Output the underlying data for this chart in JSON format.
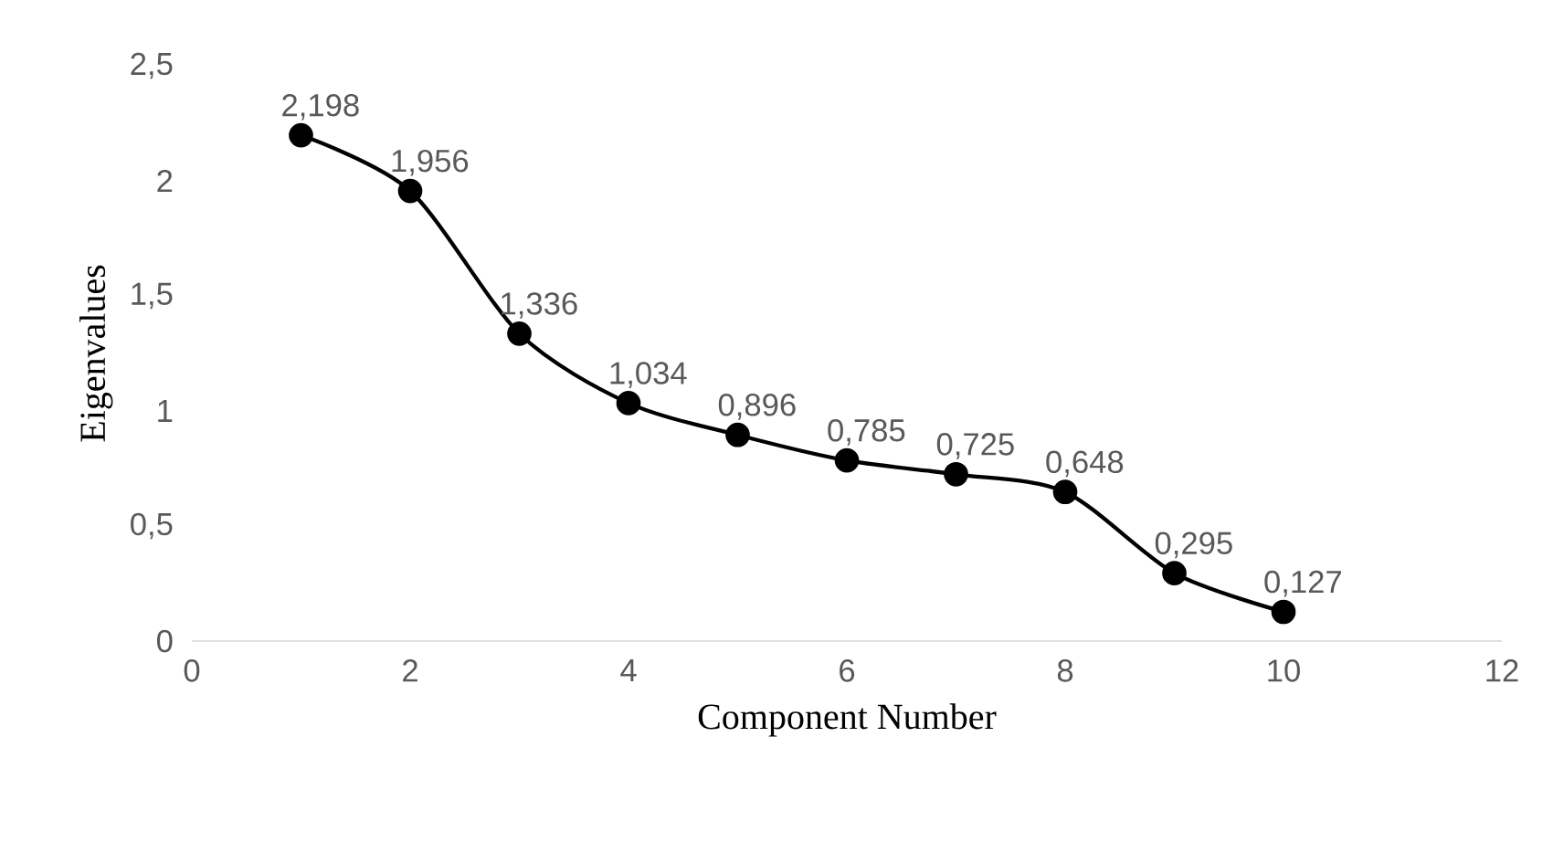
{
  "chart_data": {
    "type": "line",
    "xlabel": "Component Number",
    "ylabel": "Eigenvalues",
    "x": [
      1,
      2,
      3,
      4,
      5,
      6,
      7,
      8,
      9,
      10
    ],
    "series": [
      {
        "color": "#000000",
        "values": [
          2.198,
          1.956,
          1.336,
          1.034,
          0.896,
          0.785,
          0.725,
          0.648,
          0.295,
          0.127
        ],
        "value_labels": [
          "2,198",
          "1,956",
          "1,336",
          "1,034",
          "0,896",
          "0,785",
          "0,725",
          "0,648",
          "0,295",
          "0,127"
        ]
      }
    ],
    "xlim": [
      0,
      12
    ],
    "xticks": [
      0,
      2,
      4,
      6,
      8,
      10,
      12
    ],
    "ylim": [
      0,
      2.5
    ],
    "yticks": [
      0,
      {
        "value": 0.5,
        "label": "0,5"
      },
      1,
      {
        "value": 1.5,
        "label": "1,5"
      },
      2,
      {
        "value": 2.5,
        "label": "2,5"
      }
    ],
    "grid": false,
    "marker": "circle",
    "line_style": "solid"
  }
}
